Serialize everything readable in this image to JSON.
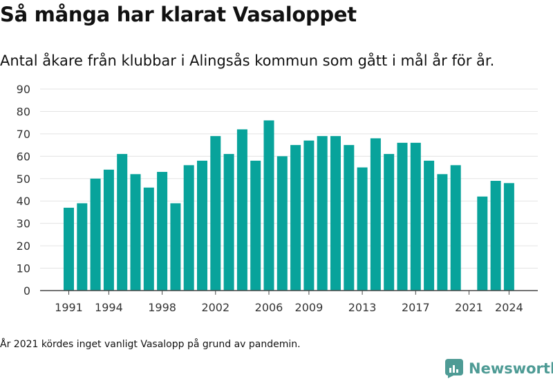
{
  "header": {
    "title": "Så många har klarat Vasaloppet",
    "subtitle": "Antal åkare från klubbar i Alingsås kommun som gått i mål år för år."
  },
  "footer": {
    "note": "År 2021 kördes inget vanligt Vasalopp på grund av pandemin.",
    "brand": "Newsworthy"
  },
  "colors": {
    "bar": "#08a39b",
    "grid": "#e3e3e3",
    "axis": "#444444",
    "brand": "#4e9b95"
  },
  "chart_data": {
    "type": "bar",
    "categories": [
      "1991",
      "1992",
      "1993",
      "1994",
      "1995",
      "1996",
      "1997",
      "1998",
      "1999",
      "2000",
      "2001",
      "2002",
      "2003",
      "2004",
      "2005",
      "2006",
      "2007",
      "2008",
      "2009",
      "2010",
      "2011",
      "2012",
      "2013",
      "2014",
      "2015",
      "2016",
      "2017",
      "2018",
      "2019",
      "2020",
      "2021",
      "2022",
      "2023",
      "2024"
    ],
    "values": [
      37,
      39,
      50,
      54,
      61,
      52,
      46,
      53,
      39,
      56,
      58,
      69,
      61,
      72,
      58,
      76,
      60,
      65,
      67,
      69,
      69,
      65,
      55,
      68,
      61,
      66,
      66,
      58,
      52,
      56,
      null,
      42,
      49,
      48
    ],
    "xtick_labels": [
      "1991",
      "1994",
      "1998",
      "2002",
      "2006",
      "2009",
      "2013",
      "2017",
      "2021",
      "2024"
    ],
    "yticks": [
      0,
      10,
      20,
      30,
      40,
      50,
      60,
      70,
      80,
      90
    ],
    "ylim": [
      0,
      90
    ],
    "title": "Så många har klarat Vasaloppet",
    "subtitle": "Antal åkare från klubbar i Alingsås kommun som gått i mål år för år.",
    "xlabel": "",
    "ylabel": "",
    "grid": true
  }
}
